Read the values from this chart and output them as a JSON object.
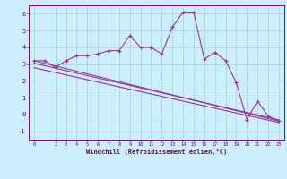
{
  "xlabel": "Windchill (Refroidissement éolien,°C)",
  "bg_color": "#cceeff",
  "grid_color": "#aadddd",
  "line_color": "#993399",
  "xlim": [
    -0.5,
    23.5
  ],
  "ylim": [
    -1.5,
    6.5
  ],
  "xticks": [
    0,
    2,
    3,
    4,
    5,
    6,
    7,
    8,
    9,
    10,
    11,
    12,
    13,
    14,
    15,
    16,
    17,
    18,
    19,
    20,
    21,
    22,
    23
  ],
  "yticks": [
    -1,
    0,
    1,
    2,
    3,
    4,
    5,
    6
  ],
  "series1_x": [
    0,
    1,
    2,
    3,
    4,
    5,
    6,
    7,
    8,
    9,
    10,
    11,
    12,
    13,
    14,
    15,
    16,
    17,
    18,
    19,
    20,
    21,
    22,
    23
  ],
  "series1_y": [
    3.2,
    3.2,
    2.8,
    3.2,
    3.5,
    3.5,
    3.6,
    3.8,
    3.8,
    4.7,
    4.0,
    4.0,
    3.6,
    5.2,
    6.1,
    6.1,
    3.3,
    3.7,
    3.2,
    1.9,
    -0.3,
    0.8,
    -0.1,
    -0.4
  ],
  "series2_x": [
    0,
    23
  ],
  "series2_y": [
    3.2,
    -0.4
  ],
  "series3_x": [
    0,
    23
  ],
  "series3_y": [
    3.05,
    -0.32
  ],
  "series4_x": [
    0,
    23
  ],
  "series4_y": [
    2.78,
    -0.48
  ]
}
